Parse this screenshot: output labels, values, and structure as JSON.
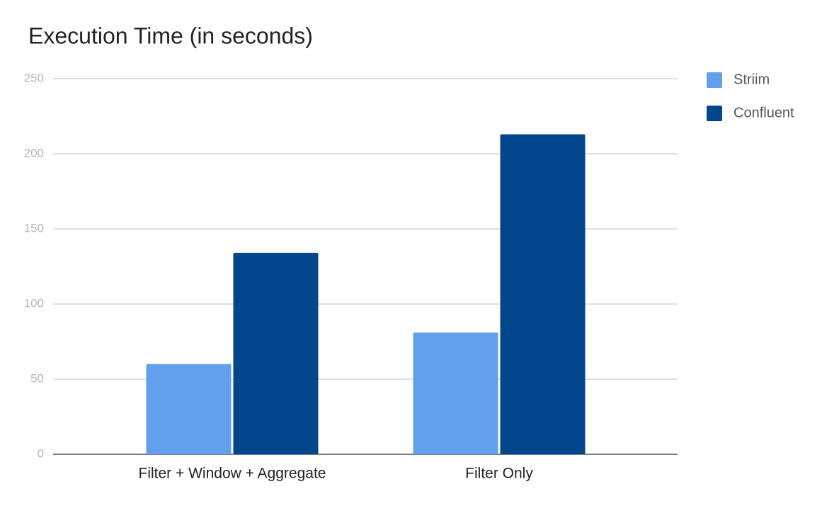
{
  "chart_data": {
    "type": "bar",
    "title": "Execution Time (in seconds)",
    "categories": [
      "Filter + Window + Aggregate",
      "Filter Only"
    ],
    "series": [
      {
        "name": "Striim",
        "color": "#62a0ee",
        "values": [
          60,
          81
        ]
      },
      {
        "name": "Confluent",
        "color": "#03468c",
        "values": [
          134,
          213
        ]
      }
    ],
    "ylim": [
      0,
      250
    ],
    "yticks": [
      0,
      50,
      100,
      150,
      200,
      250
    ],
    "grid": true,
    "legend": "right"
  }
}
